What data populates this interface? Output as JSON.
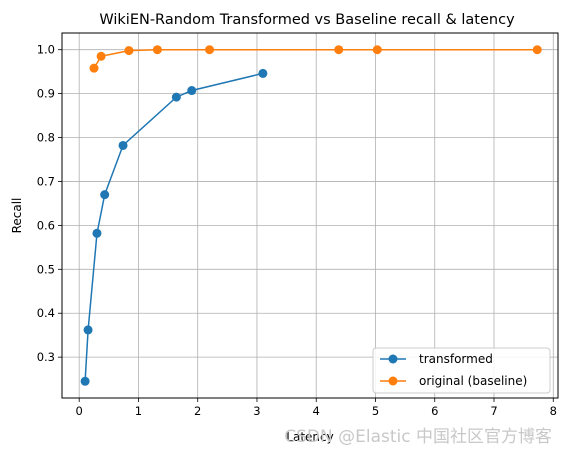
{
  "chart_data": {
    "type": "line",
    "title": "WikiEN-Random Transformed vs Baseline recall & latency",
    "xlabel": "Latency",
    "ylabel": "Recall",
    "xlim": [
      -0.29,
      8.08
    ],
    "ylim": [
      0.207,
      1.038
    ],
    "xticks": [
      0,
      1,
      2,
      3,
      4,
      5,
      6,
      7,
      8
    ],
    "yticks": [
      0.3,
      0.4,
      0.5,
      0.6,
      0.7,
      0.8,
      0.9,
      1.0
    ],
    "xtick_labels": [
      "0",
      "1",
      "2",
      "3",
      "4",
      "5",
      "6",
      "7",
      "8"
    ],
    "ytick_labels": [
      "0.3",
      "0.4",
      "0.5",
      "0.6",
      "0.7",
      "0.8",
      "0.9",
      "1.0"
    ],
    "grid": true,
    "legend_position": "lower-right",
    "series": [
      {
        "name": "transformed",
        "color": "#1f77b4",
        "x": [
          0.1,
          0.15,
          0.3,
          0.43,
          0.74,
          1.64,
          1.9,
          3.1
        ],
        "y": [
          0.245,
          0.362,
          0.582,
          0.67,
          0.782,
          0.892,
          0.907,
          0.946
        ]
      },
      {
        "name": "original (baseline)",
        "color": "#ff7f0e",
        "x": [
          0.25,
          0.37,
          0.84,
          1.32,
          2.2,
          4.38,
          5.03,
          7.73
        ],
        "y": [
          0.958,
          0.985,
          0.998,
          1.0,
          1.0,
          1.0,
          1.0,
          1.0
        ]
      }
    ]
  },
  "watermark": "CSDN @Elastic 中国社区官方博客"
}
